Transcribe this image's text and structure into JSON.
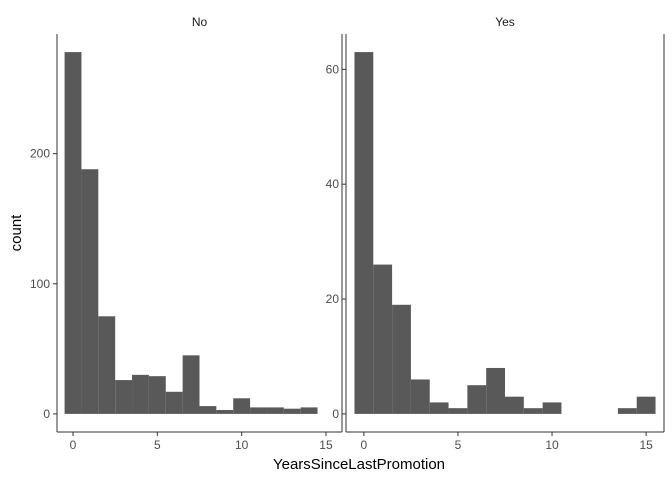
{
  "chart_data": {
    "type": "bar",
    "layout": "faceted-histogram",
    "xlabel": "YearsSinceLastPromotion",
    "ylabel": "count",
    "bar_color": "#595959",
    "grid": false,
    "bin_width": 1.0,
    "x_ticks": [
      0,
      5,
      10,
      15
    ],
    "x_tick_labels": [
      "0",
      "5",
      "10",
      "15"
    ],
    "xlim": [
      -0.95,
      15.95
    ],
    "panels": [
      {
        "strip_label": "No",
        "bin_starts": [
          -0.5,
          0.5,
          1.5,
          2.5,
          3.5,
          4.5,
          5.5,
          6.5,
          7.5,
          8.5,
          9.5,
          10.5,
          11.5,
          12.5,
          13.5,
          14.5
        ],
        "counts": [
          278,
          188,
          75,
          26,
          30,
          29,
          17,
          45,
          6,
          3,
          12,
          5,
          5,
          4,
          5,
          0
        ],
        "ylim": [
          -13.9,
          291.9
        ],
        "y_ticks": [
          0,
          100,
          200
        ],
        "y_tick_labels": [
          "0",
          "100",
          "200"
        ]
      },
      {
        "strip_label": "Yes",
        "bin_starts": [
          -0.5,
          0.5,
          1.5,
          2.5,
          3.5,
          4.5,
          5.5,
          6.5,
          7.5,
          8.5,
          9.5,
          10.5,
          11.5,
          12.5,
          13.5,
          14.5
        ],
        "counts": [
          63,
          26,
          19,
          6,
          2,
          1,
          5,
          8,
          3,
          1,
          2,
          0,
          0,
          0,
          1,
          3
        ],
        "ylim": [
          -3.15,
          66.15
        ],
        "y_ticks": [
          0,
          20,
          40,
          60
        ],
        "y_tick_labels": [
          "0",
          "20",
          "40",
          "60"
        ]
      }
    ]
  }
}
